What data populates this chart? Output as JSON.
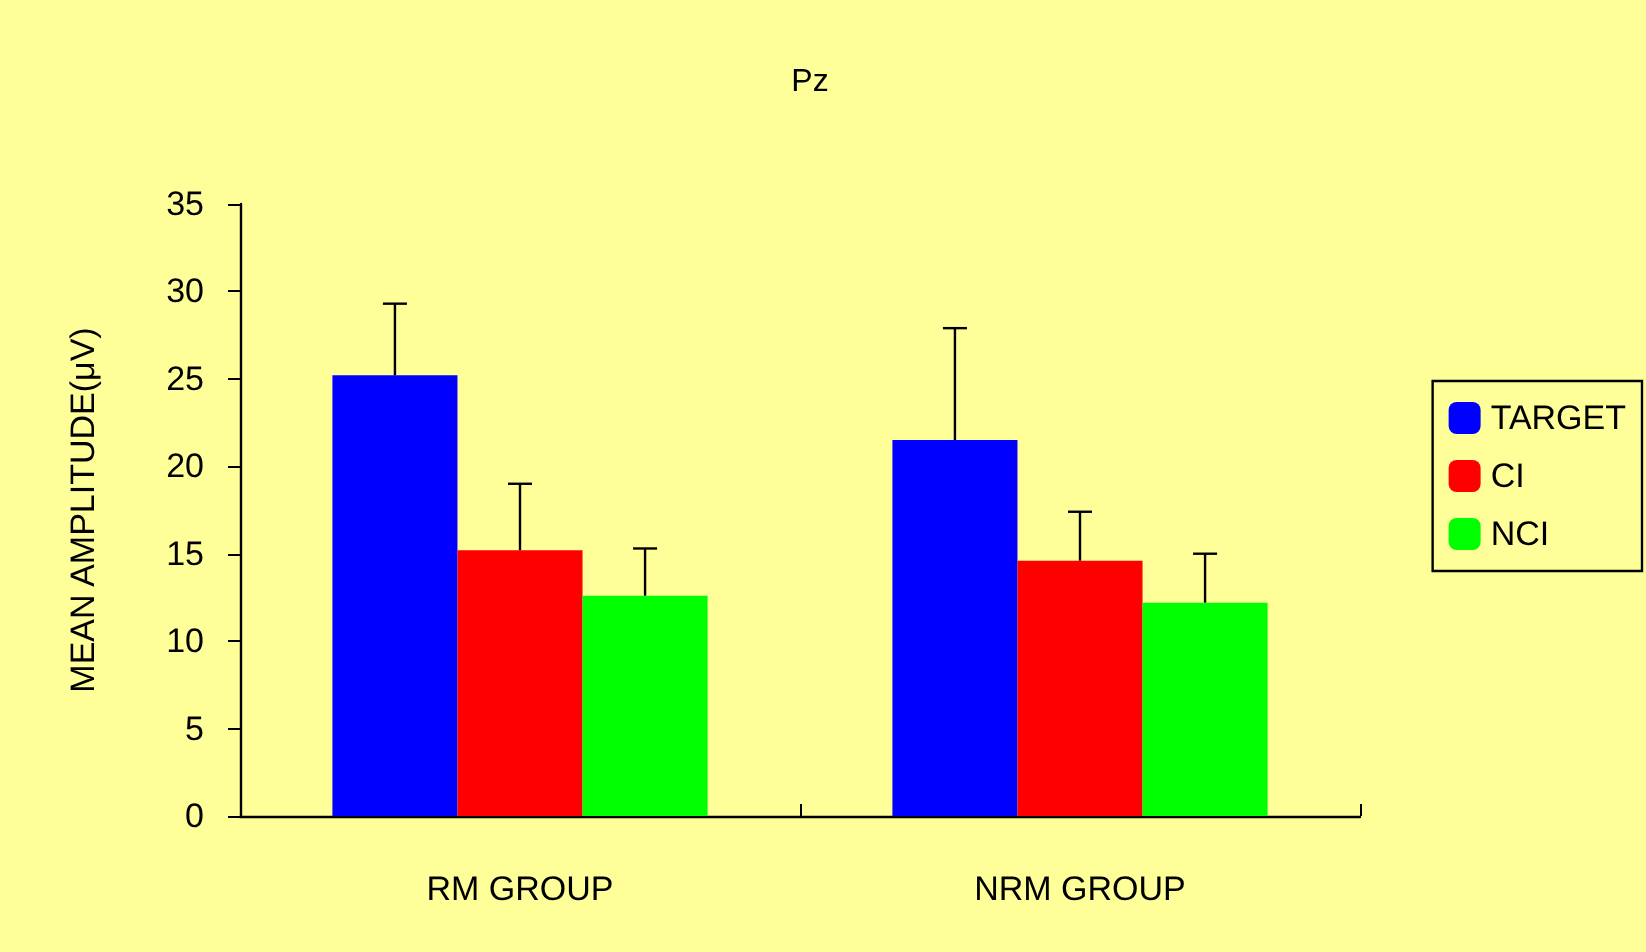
{
  "chart_data": {
    "type": "bar",
    "title": "Pz",
    "ylabel": "MEAN AMPLITUDE(μV)",
    "categories": [
      "RM GROUP",
      "NRM GROUP"
    ],
    "series": [
      {
        "name": "TARGET",
        "color": "#0000ff",
        "values": [
          25.2,
          21.5
        ],
        "errors": [
          [
            25.2,
            29.3
          ],
          [
            21.5,
            27.9
          ]
        ]
      },
      {
        "name": "CI",
        "color": "#ff0000",
        "values": [
          15.2,
          14.6
        ],
        "errors": [
          [
            15.2,
            19.0
          ],
          [
            14.6,
            17.4
          ]
        ]
      },
      {
        "name": "NCI",
        "color": "#00ff00",
        "values": [
          12.6,
          12.2
        ],
        "errors": [
          [
            12.6,
            15.3
          ],
          [
            12.2,
            15.0
          ]
        ]
      }
    ],
    "ylim": [
      0,
      35
    ],
    "yticks": [
      0,
      5,
      10,
      15,
      20,
      25,
      30,
      35
    ],
    "grid": false,
    "legend": "right"
  }
}
